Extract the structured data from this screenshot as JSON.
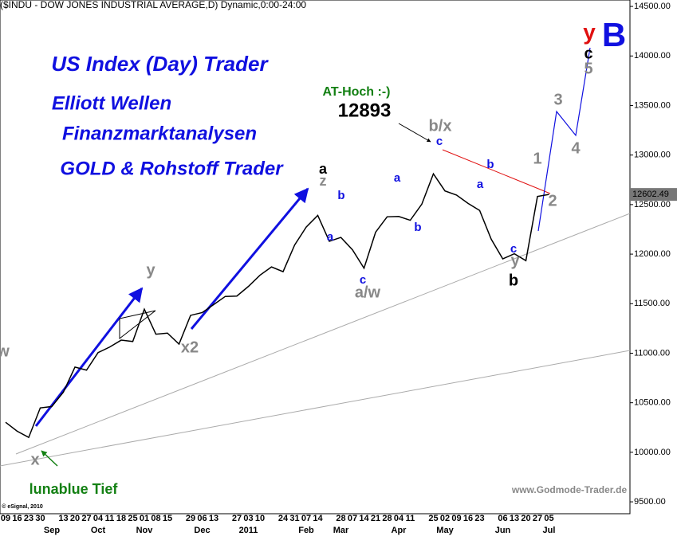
{
  "chart_data": {
    "type": "line",
    "title": "($INDU - DOW JONES INDUSTRIAL AVERAGE,D) Dynamic,0:00-24:00",
    "categories": [
      "09",
      "16",
      "23",
      "30",
      null,
      "13",
      "20",
      "27",
      "04",
      "11",
      "18",
      "25",
      "01",
      "08",
      "15",
      null,
      "29",
      "06",
      "13",
      null,
      "27",
      "03",
      "10",
      null,
      "24",
      "31",
      "07",
      "14",
      null,
      "28",
      "07",
      "14",
      "21",
      "28",
      "04",
      "11",
      null,
      "25",
      "02",
      "09",
      "16",
      "23",
      null,
      "06",
      "13",
      "20",
      "27",
      "05"
    ],
    "month_labels": [
      null,
      null,
      null,
      null,
      "Sep",
      null,
      null,
      null,
      "Oct",
      null,
      null,
      null,
      "Nov",
      null,
      null,
      null,
      null,
      "Dec",
      null,
      null,
      null,
      "2011",
      null,
      null,
      null,
      null,
      "Feb",
      null,
      null,
      "Mar",
      null,
      null,
      null,
      null,
      "Apr",
      null,
      null,
      null,
      "May",
      null,
      null,
      null,
      null,
      "Jun",
      null,
      null,
      null,
      "Jul"
    ],
    "series": [
      {
        "name": "$INDU",
        "color": "#000000",
        "values": [
          10303,
          10213,
          10150,
          10448,
          10462,
          10607,
          10860,
          10829,
          11006,
          11062,
          11132,
          11118,
          11444,
          11192,
          11203,
          11092,
          11382,
          11410,
          11491,
          11573,
          11577,
          11674,
          11787,
          11871,
          11823,
          12092,
          12273,
          12391,
          12130,
          12169,
          12044,
          11858,
          12221,
          12377,
          12380,
          12342,
          12505,
          12811,
          12638,
          12596,
          12512,
          12441,
          12151,
          11952,
          12004,
          11934,
          12582,
          12602.49
        ]
      }
    ],
    "last_price": 12602.49,
    "ylim": [
      9380,
      14565
    ],
    "yticks": [
      {
        "value": 9500,
        "label": "9500.00"
      },
      {
        "value": 10000,
        "label": "10000.00"
      },
      {
        "value": 10500,
        "label": "10500.00"
      },
      {
        "value": 11000,
        "label": "11000.00"
      },
      {
        "value": 11500,
        "label": "11500.00"
      },
      {
        "value": 12000,
        "label": "12000.00"
      },
      {
        "value": 12500,
        "label": "12500.00"
      },
      {
        "value": 13000,
        "label": "13000.00"
      },
      {
        "value": 13500,
        "label": "13500.00"
      },
      {
        "value": 14000,
        "label": "14000.00"
      },
      {
        "value": 14500,
        "label": "14500.00"
      }
    ],
    "annotations": [
      {
        "text": "US Index (Day) Trader",
        "color": "#1010e0"
      },
      {
        "text": "Elliott Wellen",
        "color": "#1010e0"
      },
      {
        "text": "Finanzmarktanalysen",
        "color": "#1010e0"
      },
      {
        "text": "GOLD & Rohstoff Trader",
        "color": "#1010e0"
      },
      {
        "text": "AT-Hoch :-)",
        "color": "#138013"
      },
      {
        "text": "12893",
        "color": "#000000"
      },
      {
        "text": "b/x",
        "color": "#888888"
      },
      {
        "text": "c",
        "color": "#1010e0"
      },
      {
        "text": "a",
        "color": "#000000"
      },
      {
        "text": "z",
        "color": "#888888"
      },
      {
        "text": "b",
        "color": "#1010e0"
      },
      {
        "text": "a",
        "color": "#1010e0"
      },
      {
        "text": "a",
        "color": "#1010e0"
      },
      {
        "text": "b",
        "color": "#1010e0"
      },
      {
        "text": "c",
        "color": "#1010e0"
      },
      {
        "text": "a/w",
        "color": "#888888"
      },
      {
        "text": "b",
        "color": "#1010e0"
      },
      {
        "text": "a",
        "color": "#1010e0"
      },
      {
        "text": "c",
        "color": "#1010e0"
      },
      {
        "text": "y",
        "color": "#888888"
      },
      {
        "text": "b",
        "color": "#000000"
      },
      {
        "text": "1",
        "color": "#888888"
      },
      {
        "text": "2",
        "color": "#888888"
      },
      {
        "text": "3",
        "color": "#888888"
      },
      {
        "text": "4",
        "color": "#888888"
      },
      {
        "text": "5",
        "color": "#888888"
      },
      {
        "text": "c",
        "color": "#000000"
      },
      {
        "text": "y",
        "color": "#e01010"
      },
      {
        "text": "B",
        "color": "#1010e0"
      },
      {
        "text": "y",
        "color": "#888888"
      },
      {
        "text": "x2",
        "color": "#888888"
      },
      {
        "text": "x",
        "color": "#888888"
      },
      {
        "text": "w",
        "color": "#888888"
      },
      {
        "text": "lunablue Tief",
        "color": "#138013"
      },
      {
        "text": "www.Godmode-Trader.de",
        "color": "#888888"
      },
      {
        "text": "© eSignal, 2010",
        "color": "#000000"
      }
    ]
  }
}
